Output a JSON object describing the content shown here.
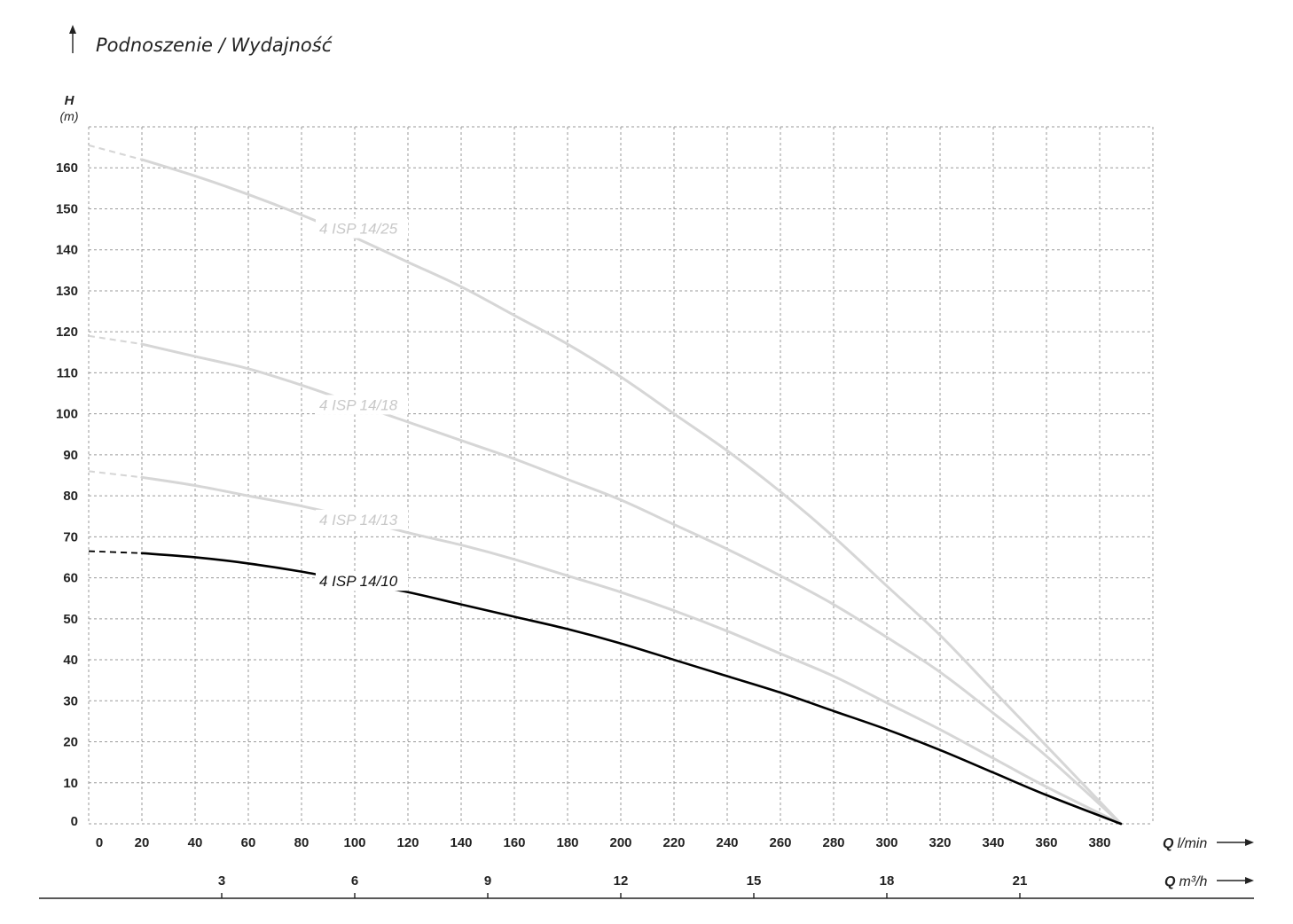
{
  "chart_data": {
    "type": "line",
    "title": "Podnoszenie / Wydajność",
    "ylabel": "H",
    "yunit": "(m)",
    "ylim": [
      0,
      170
    ],
    "yticks": [
      0,
      10,
      20,
      30,
      40,
      50,
      60,
      70,
      80,
      90,
      100,
      110,
      120,
      130,
      140,
      150,
      160
    ],
    "xlim": [
      0,
      400
    ],
    "xticks": [
      0,
      20,
      40,
      60,
      80,
      100,
      120,
      140,
      160,
      180,
      200,
      220,
      240,
      260,
      280,
      300,
      320,
      340,
      360,
      380
    ],
    "xlabel_q": "Q",
    "xlabel_unit": "l/min",
    "x2_ticks": [
      3,
      6,
      9,
      12,
      15,
      18,
      21
    ],
    "x2label_q": "Q",
    "x2label_unit": "m³/h",
    "grid": true,
    "series": [
      {
        "name": "4 ISP 14/25",
        "color": "#d6d6d6",
        "dashed_until": 20,
        "x": [
          0,
          20,
          40,
          60,
          80,
          100,
          120,
          140,
          160,
          180,
          200,
          220,
          240,
          260,
          280,
          300,
          320,
          340,
          360,
          388
        ],
        "y": [
          165.5,
          162,
          158,
          153.5,
          148.5,
          143,
          137,
          131,
          124,
          117,
          109,
          100,
          91,
          81,
          70,
          58,
          46,
          32.5,
          19,
          0
        ]
      },
      {
        "name": "4 ISP 14/18",
        "color": "#d6d6d6",
        "dashed_until": 20,
        "x": [
          0,
          20,
          40,
          60,
          80,
          100,
          120,
          140,
          160,
          180,
          200,
          220,
          240,
          260,
          280,
          300,
          320,
          340,
          360,
          388
        ],
        "y": [
          119,
          117,
          114,
          111,
          107,
          102.5,
          98,
          93.5,
          89,
          84,
          79,
          73,
          67,
          60.5,
          53.5,
          45.5,
          37,
          27,
          16.5,
          0
        ]
      },
      {
        "name": "4 ISP 14/13",
        "color": "#d6d6d6",
        "dashed_until": 20,
        "x": [
          0,
          20,
          40,
          60,
          80,
          100,
          120,
          140,
          160,
          180,
          200,
          220,
          240,
          260,
          280,
          300,
          320,
          340,
          360,
          388
        ],
        "y": [
          86,
          84.5,
          82.5,
          80,
          77.5,
          74.5,
          71,
          68,
          64.5,
          60.5,
          56.5,
          52,
          47,
          41.5,
          36,
          29.5,
          23,
          16,
          9,
          0
        ]
      },
      {
        "name": "4 ISP 14/10",
        "color": "#000000",
        "dashed_until": 20,
        "x": [
          0,
          20,
          40,
          60,
          80,
          100,
          120,
          140,
          160,
          180,
          200,
          220,
          240,
          260,
          280,
          300,
          320,
          340,
          360,
          388
        ],
        "y": [
          66.5,
          66,
          65,
          63.5,
          61.5,
          59,
          56.5,
          53.5,
          50.5,
          47.5,
          44,
          40,
          36,
          32,
          27.5,
          23,
          18,
          12.5,
          7,
          0
        ]
      }
    ]
  }
}
